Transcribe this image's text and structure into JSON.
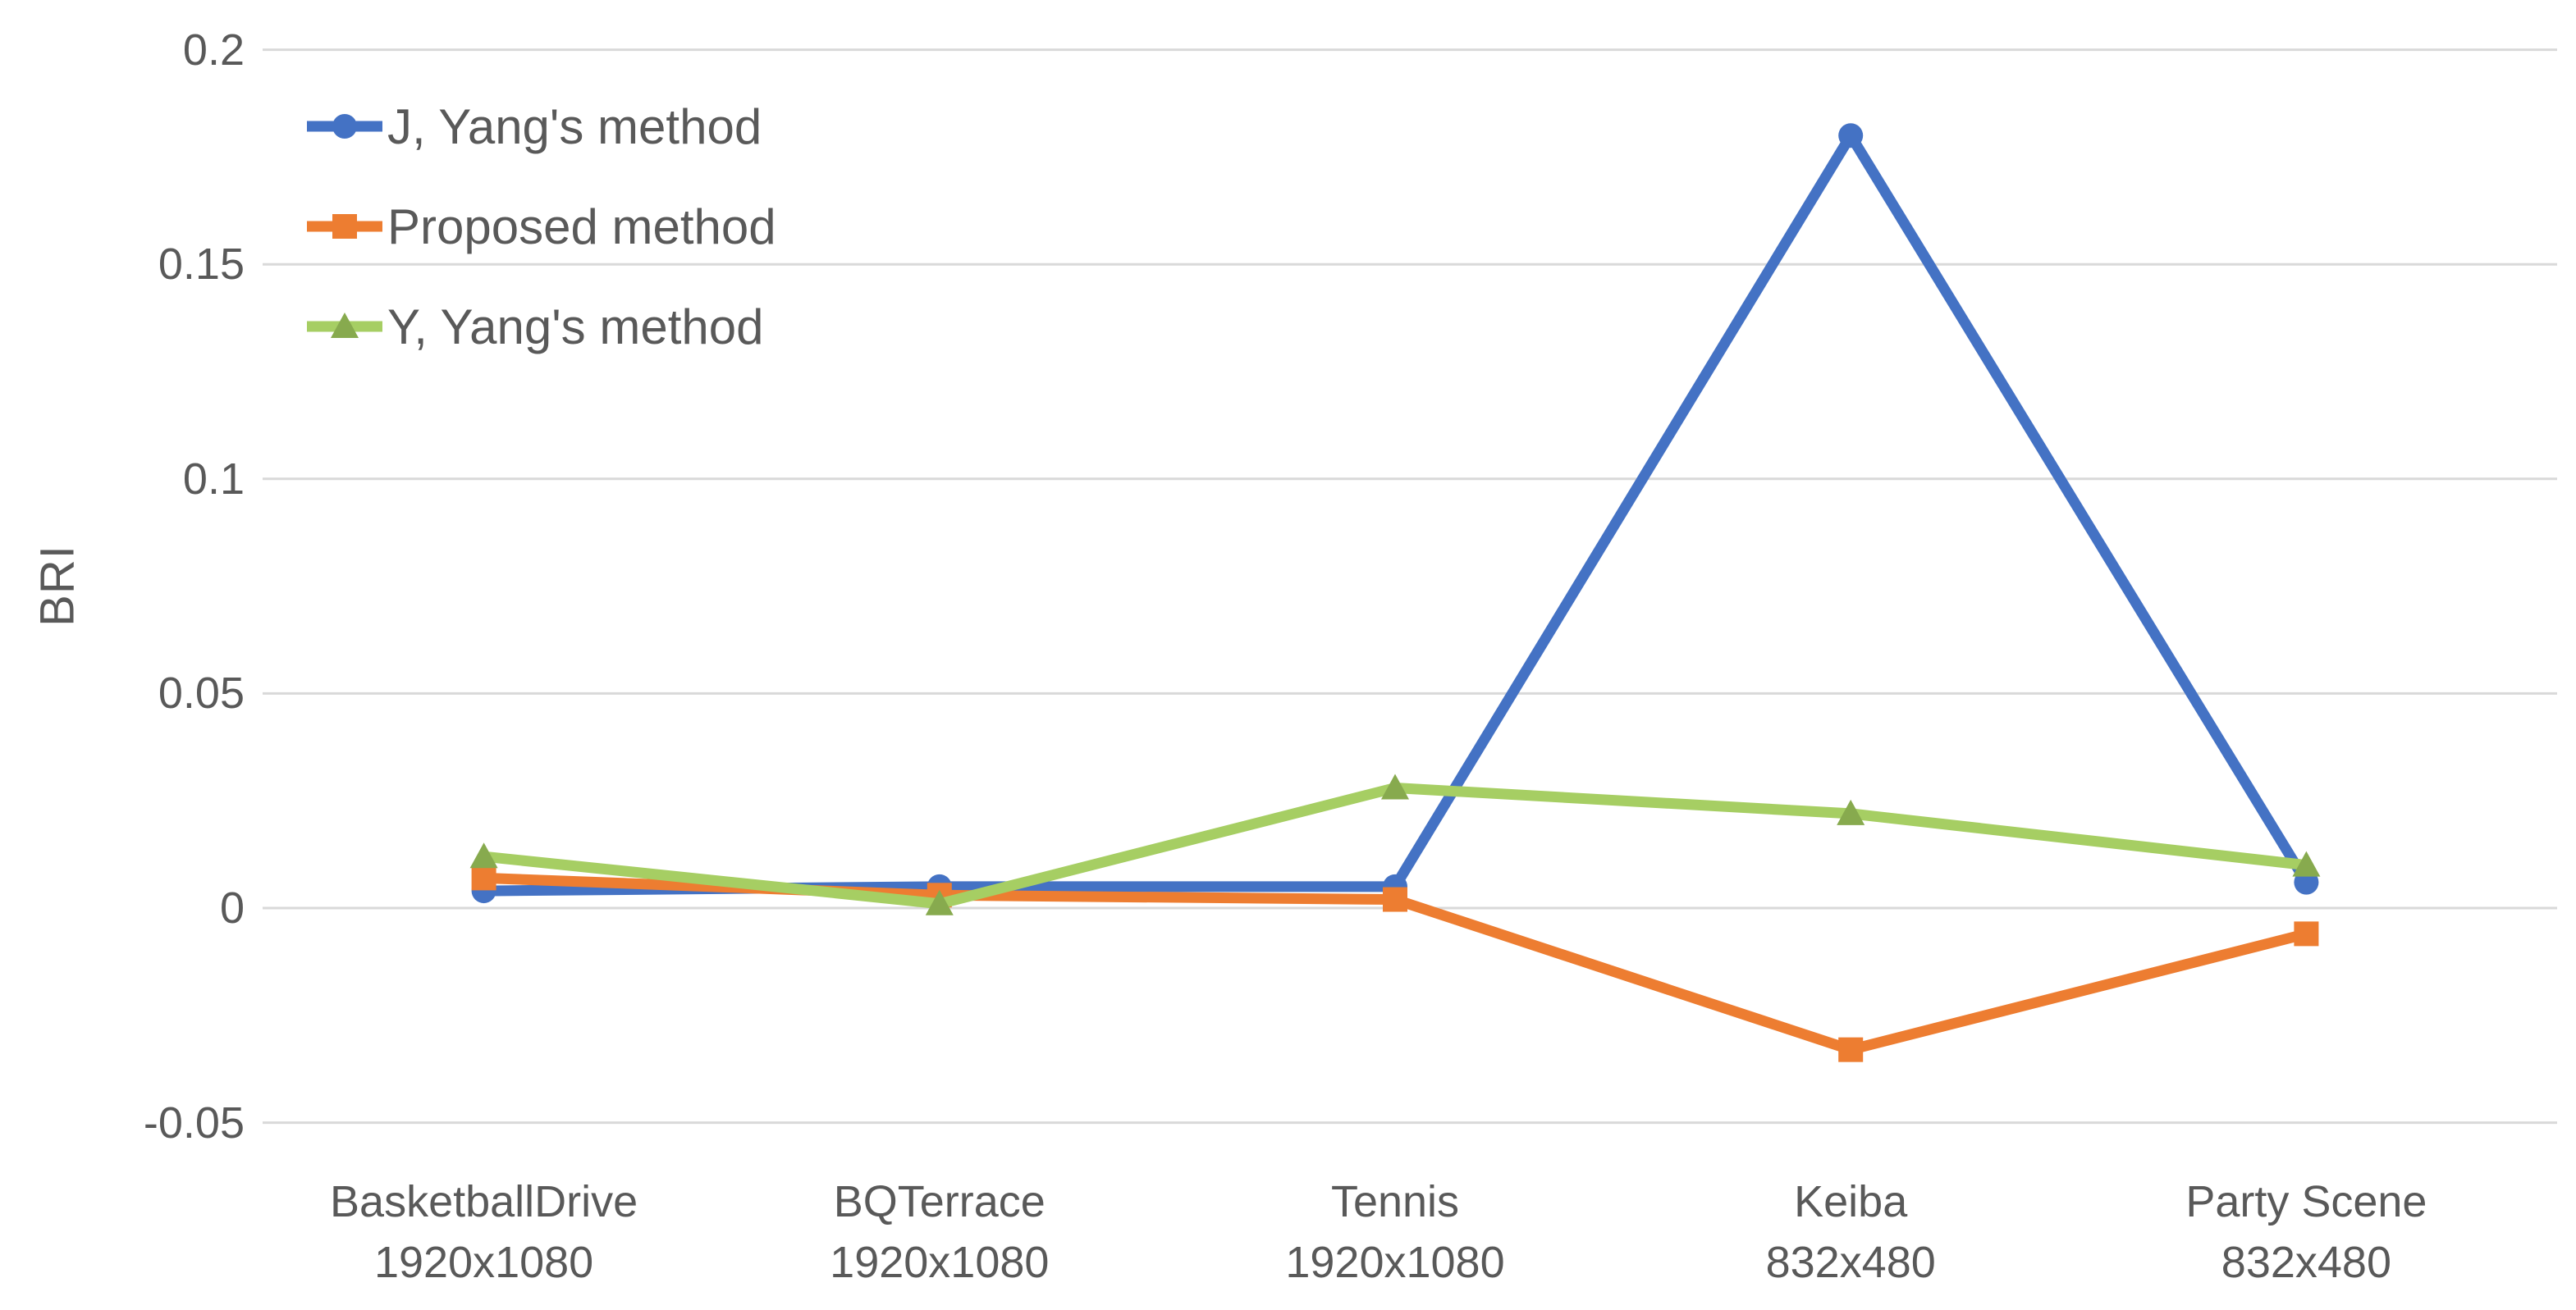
{
  "chart_data": {
    "type": "line",
    "title": "",
    "ylabel": "BRI",
    "xlabel": "",
    "ylim": [
      -0.05,
      0.2
    ],
    "ytick_interval": 0.05,
    "grid": "horizontal",
    "legend_position": "top-left-inside",
    "background_color": "#FFFFFF",
    "gridline_color": "#D9D9D9",
    "text_color": "#595959",
    "yticks": [
      {
        "value": 0.2,
        "label": "0.2"
      },
      {
        "value": 0.15,
        "label": "0.15"
      },
      {
        "value": 0.1,
        "label": "0.1"
      },
      {
        "value": 0.05,
        "label": "0.05"
      },
      {
        "value": 0,
        "label": "0"
      },
      {
        "value": -0.05,
        "label": "-0.05"
      }
    ],
    "categories": [
      {
        "name": "BasketballDrive",
        "resolution": "1920x1080"
      },
      {
        "name": "BQTerrace",
        "resolution": "1920x1080"
      },
      {
        "name": "Tennis",
        "resolution": "1920x1080"
      },
      {
        "name": "Keiba",
        "resolution": "832x480"
      },
      {
        "name": "Party Scene",
        "resolution": "832x480"
      }
    ],
    "series": [
      {
        "name": "J, Yang's method",
        "marker": "circle",
        "color": "#4472C4",
        "marker_color": "#4472C4",
        "values": [
          0.004,
          0.005,
          0.005,
          0.18,
          0.006
        ]
      },
      {
        "name": "Proposed method",
        "marker": "square",
        "color": "#ED7D31",
        "marker_color": "#ED7D31",
        "values": [
          0.007,
          0.003,
          0.002,
          -0.033,
          -0.006
        ]
      },
      {
        "name": "Y, Yang's method",
        "marker": "triangle",
        "color": "#A6CE63",
        "marker_color": "#87AA4E",
        "values": [
          0.012,
          0.001,
          0.028,
          0.022,
          0.01
        ]
      }
    ]
  }
}
